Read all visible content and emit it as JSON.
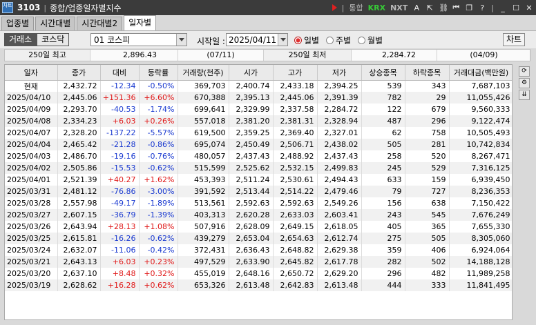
{
  "titlebar": {
    "icon_text": "차트",
    "code": "3103",
    "title": "종합/업종일자별지수",
    "tb_all": "통합",
    "tb_krx": "KRX",
    "tb_nxt": "NXT",
    "tb_a": "A"
  },
  "tabs": [
    {
      "label": "업종별"
    },
    {
      "label": "시간대별"
    },
    {
      "label": "시간대별2"
    },
    {
      "label": "일자별",
      "active": true
    }
  ],
  "toolbar": {
    "seg": [
      {
        "label": "거래소",
        "active": true
      },
      {
        "label": "코스닥",
        "active": false
      }
    ],
    "sector": "01  코스피",
    "start_label": "시작일 :",
    "start_date": "2025/04/11",
    "radios": [
      {
        "label": "일별",
        "checked": true
      },
      {
        "label": "주별",
        "checked": false
      },
      {
        "label": "월별",
        "checked": false
      }
    ],
    "chart_button": "차트"
  },
  "summary": {
    "high_label": "250일 최고",
    "high_value": "2,896.43",
    "high_date": "(07/11)",
    "low_label": "250일 최저",
    "low_value": "2,284.72",
    "low_date": "(04/09)"
  },
  "table": {
    "columns": [
      "일자",
      "종가",
      "대비",
      "등락률",
      "거래량(천주)",
      "시가",
      "고가",
      "저가",
      "상승종목",
      "하락종목",
      "거래대금(백만원)"
    ],
    "rows": [
      {
        "date": "현재",
        "close": "2,432.72",
        "change": "-12.34",
        "rate": "-0.50%",
        "volume": "369,703",
        "open": "2,400.74",
        "high": "2,433.18",
        "low": "2,394.25",
        "up": "539",
        "down": "343",
        "amount": "7,687,103",
        "dir": "down"
      },
      {
        "date": "2025/04/10",
        "close": "2,445.06",
        "change": "+151.36",
        "rate": "+6.60%",
        "volume": "670,388",
        "open": "2,395.13",
        "high": "2,445.06",
        "low": "2,391.39",
        "up": "782",
        "down": "29",
        "amount": "11,055,426",
        "dir": "up"
      },
      {
        "date": "2025/04/09",
        "close": "2,293.70",
        "change": "-40.53",
        "rate": "-1.74%",
        "volume": "699,641",
        "open": "2,329.99",
        "high": "2,337.58",
        "low": "2,284.72",
        "up": "122",
        "down": "679",
        "amount": "9,560,333",
        "dir": "down"
      },
      {
        "date": "2025/04/08",
        "close": "2,334.23",
        "change": "+6.03",
        "rate": "+0.26%",
        "volume": "557,018",
        "open": "2,381.20",
        "high": "2,381.31",
        "low": "2,328.94",
        "up": "487",
        "down": "296",
        "amount": "9,122,474",
        "dir": "up"
      },
      {
        "date": "2025/04/07",
        "close": "2,328.20",
        "change": "-137.22",
        "rate": "-5.57%",
        "volume": "619,500",
        "open": "2,359.25",
        "high": "2,369.40",
        "low": "2,327.01",
        "up": "62",
        "down": "758",
        "amount": "10,505,493",
        "dir": "down"
      },
      {
        "date": "2025/04/04",
        "close": "2,465.42",
        "change": "-21.28",
        "rate": "-0.86%",
        "volume": "695,074",
        "open": "2,450.49",
        "high": "2,506.71",
        "low": "2,438.02",
        "up": "505",
        "down": "281",
        "amount": "10,742,834",
        "dir": "down"
      },
      {
        "date": "2025/04/03",
        "close": "2,486.70",
        "change": "-19.16",
        "rate": "-0.76%",
        "volume": "480,057",
        "open": "2,437.43",
        "high": "2,488.92",
        "low": "2,437.43",
        "up": "258",
        "down": "520",
        "amount": "8,267,471",
        "dir": "down"
      },
      {
        "date": "2025/04/02",
        "close": "2,505.86",
        "change": "-15.53",
        "rate": "-0.62%",
        "volume": "515,599",
        "open": "2,525.62",
        "high": "2,532.15",
        "low": "2,499.83",
        "up": "245",
        "down": "529",
        "amount": "7,316,125",
        "dir": "down"
      },
      {
        "date": "2025/04/01",
        "close": "2,521.39",
        "change": "+40.27",
        "rate": "+1.62%",
        "volume": "453,393",
        "open": "2,511.24",
        "high": "2,530.61",
        "low": "2,494.43",
        "up": "633",
        "down": "159",
        "amount": "6,939,450",
        "dir": "up"
      },
      {
        "date": "2025/03/31",
        "close": "2,481.12",
        "change": "-76.86",
        "rate": "-3.00%",
        "volume": "391,592",
        "open": "2,513.44",
        "high": "2,514.22",
        "low": "2,479.46",
        "up": "79",
        "down": "727",
        "amount": "8,236,353",
        "dir": "down"
      },
      {
        "date": "2025/03/28",
        "close": "2,557.98",
        "change": "-49.17",
        "rate": "-1.89%",
        "volume": "513,561",
        "open": "2,592.63",
        "high": "2,592.63",
        "low": "2,549.26",
        "up": "156",
        "down": "638",
        "amount": "7,150,422",
        "dir": "down"
      },
      {
        "date": "2025/03/27",
        "close": "2,607.15",
        "change": "-36.79",
        "rate": "-1.39%",
        "volume": "403,313",
        "open": "2,620.28",
        "high": "2,633.03",
        "low": "2,603.41",
        "up": "243",
        "down": "545",
        "amount": "7,676,249",
        "dir": "down"
      },
      {
        "date": "2025/03/26",
        "close": "2,643.94",
        "change": "+28.13",
        "rate": "+1.08%",
        "volume": "507,916",
        "open": "2,628.09",
        "high": "2,649.15",
        "low": "2,618.05",
        "up": "405",
        "down": "365",
        "amount": "7,655,330",
        "dir": "up"
      },
      {
        "date": "2025/03/25",
        "close": "2,615.81",
        "change": "-16.26",
        "rate": "-0.62%",
        "volume": "439,279",
        "open": "2,653.04",
        "high": "2,654.63",
        "low": "2,612.74",
        "up": "275",
        "down": "505",
        "amount": "8,305,060",
        "dir": "down"
      },
      {
        "date": "2025/03/24",
        "close": "2,632.07",
        "change": "-11.06",
        "rate": "-0.42%",
        "volume": "372,431",
        "open": "2,636.43",
        "high": "2,648.82",
        "low": "2,629.38",
        "up": "359",
        "down": "406",
        "amount": "6,924,064",
        "dir": "down"
      },
      {
        "date": "2025/03/21",
        "close": "2,643.13",
        "change": "+6.03",
        "rate": "+0.23%",
        "volume": "497,529",
        "open": "2,633.90",
        "high": "2,645.82",
        "low": "2,617.78",
        "up": "282",
        "down": "502",
        "amount": "14,188,128",
        "dir": "up"
      },
      {
        "date": "2025/03/20",
        "close": "2,637.10",
        "change": "+8.48",
        "rate": "+0.32%",
        "volume": "455,019",
        "open": "2,648.16",
        "high": "2,650.72",
        "low": "2,629.20",
        "up": "296",
        "down": "482",
        "amount": "11,989,258",
        "dir": "up"
      },
      {
        "date": "2025/03/19",
        "close": "2,628.62",
        "change": "+16.28",
        "rate": "+0.62%",
        "volume": "653,326",
        "open": "2,613.48",
        "high": "2,642.83",
        "low": "2,613.48",
        "up": "444",
        "down": "333",
        "amount": "11,841,495",
        "dir": "up"
      }
    ]
  },
  "colors": {
    "up": "#e01818",
    "down": "#1838d0",
    "titlebar": "#3b3b3b",
    "krx": "#37c837"
  },
  "icons": [
    "play-icon",
    "pin-icon",
    "export-icon",
    "link-icon",
    "prev-icon",
    "window-icon",
    "help-icon",
    "minimize-icon",
    "maximize-icon",
    "close-icon",
    "refresh-icon",
    "settings-icon",
    "expand-down-icon"
  ]
}
